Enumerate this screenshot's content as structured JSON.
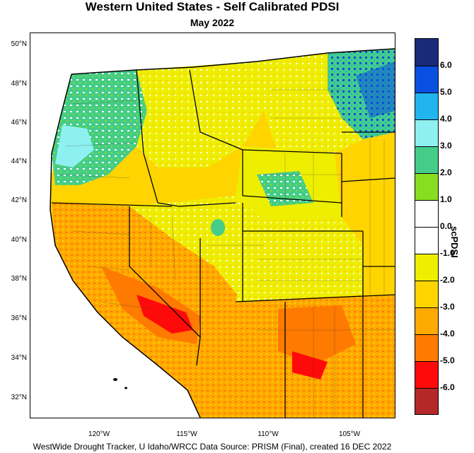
{
  "title": "Western United States - Self Calibrated PDSI",
  "subtitle": "May 2022",
  "footer": "WestWide Drought Tracker, U Idaho/WRCC Data Source: PRISM (Final), created 16 DEC 2022",
  "colorbar": {
    "title": "scPDSI",
    "labels": [
      "6.0",
      "5.0",
      "4.0",
      "3.0",
      "2.0",
      "1.0",
      "0.0",
      "-1.0",
      "-2.0",
      "-3.0",
      "-4.0",
      "-5.0",
      "-6.0"
    ],
    "colors": [
      "#1a2a78",
      "#0a50e0",
      "#22b4ee",
      "#8ef0f0",
      "#44cc88",
      "#88dd22",
      "#ffffff",
      "#ffffff",
      "#eeee00",
      "#ffd400",
      "#ffaa00",
      "#ff7a00",
      "#ff0a0a",
      "#b42828"
    ]
  },
  "latitude_labels": [
    "50°N",
    "48°N",
    "46°N",
    "44°N",
    "42°N",
    "40°N",
    "38°N",
    "36°N",
    "34°N",
    "32°N"
  ],
  "longitude_labels": [
    "120°W",
    "115°W",
    "110°W",
    "105°W"
  ]
}
